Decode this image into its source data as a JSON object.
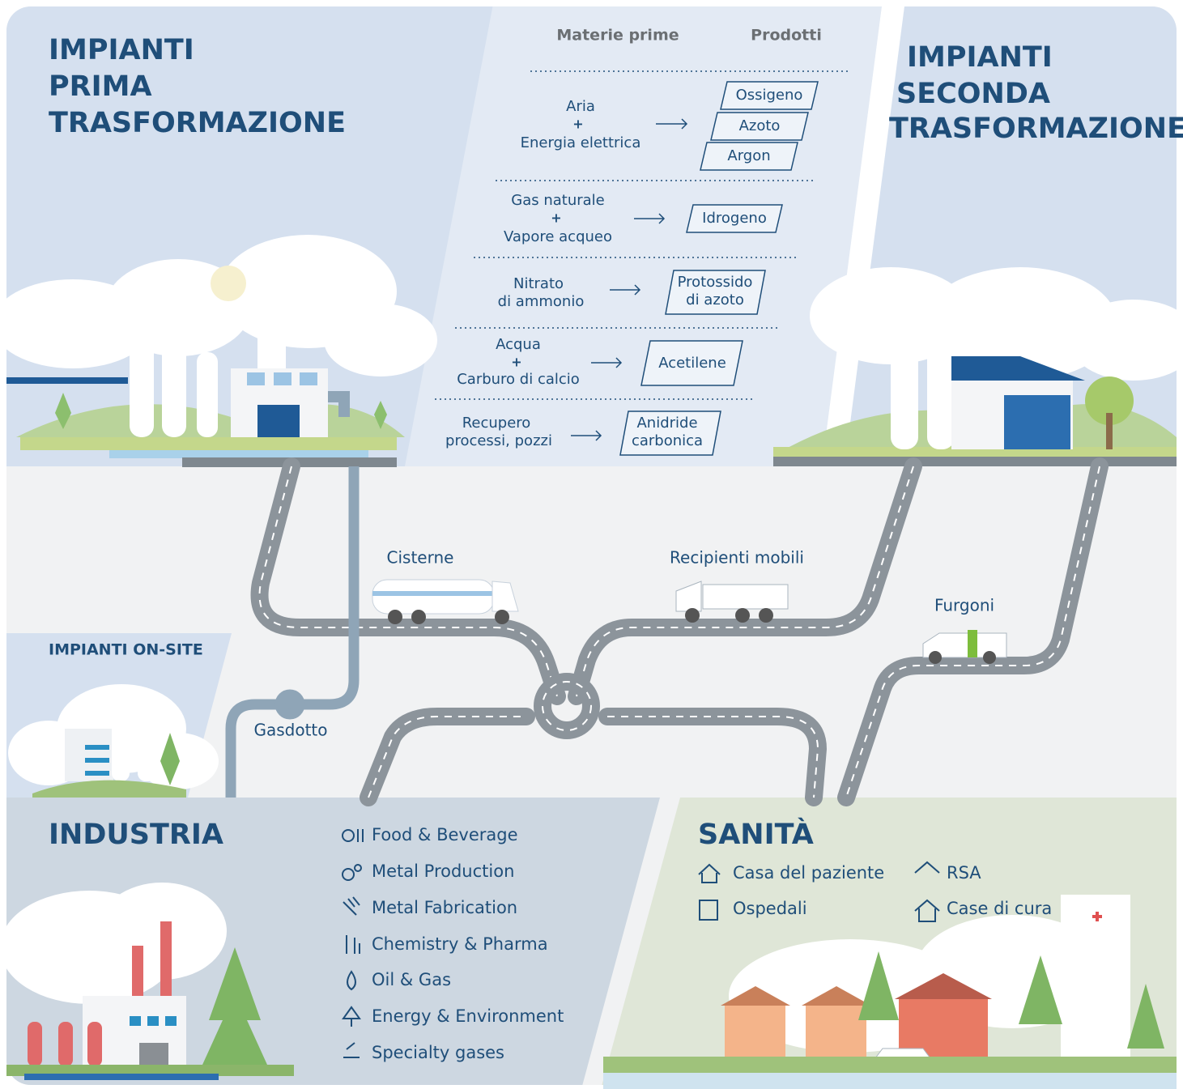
{
  "primary": {
    "title": [
      "IMPIANTI",
      "PRIMA",
      "TRASFORMAZIONE"
    ]
  },
  "secondary": {
    "title": [
      "IMPIANTI",
      "SECONDA",
      "TRASFORMAZIONE"
    ]
  },
  "onsite": {
    "title": "IMPIANTI ON-SITE"
  },
  "table": {
    "headers": [
      "Materie prime",
      "Prodotti"
    ],
    "rows": [
      {
        "inputs": [
          "Aria",
          "+",
          "Energia elettrica"
        ],
        "products": [
          "Ossigeno",
          "Azoto",
          "Argon"
        ]
      },
      {
        "inputs": [
          "Gas naturale",
          "+",
          "Vapore acqueo"
        ],
        "products": [
          "Idrogeno"
        ]
      },
      {
        "inputs": [
          "Nitrato",
          "di ammonio"
        ],
        "products": [
          [
            "Protossido",
            "di azoto"
          ]
        ]
      },
      {
        "inputs": [
          "Acqua",
          "+",
          "Carburo di calcio"
        ],
        "products": [
          "Acetilene"
        ]
      },
      {
        "inputs": [
          "Recupero",
          "processi, pozzi"
        ],
        "products": [
          [
            "Anidride",
            "carbonica"
          ]
        ]
      }
    ]
  },
  "transport": {
    "tanker": "Cisterne",
    "cylinders": "Recipienti mobili",
    "vans": "Furgoni",
    "pipeline": "Gasdotto"
  },
  "industria": {
    "title": "INDUSTRIA",
    "items": [
      "Food & Beverage",
      "Metal Production",
      "Metal Fabrication",
      "Chemistry & Pharma",
      "Oil & Gas",
      "Energy & Environment",
      "Specialty gases"
    ]
  },
  "sanita": {
    "title": "SANITÀ",
    "items": [
      "Casa del paziente",
      "Ospedali",
      "RSA",
      "Case di cura"
    ]
  }
}
